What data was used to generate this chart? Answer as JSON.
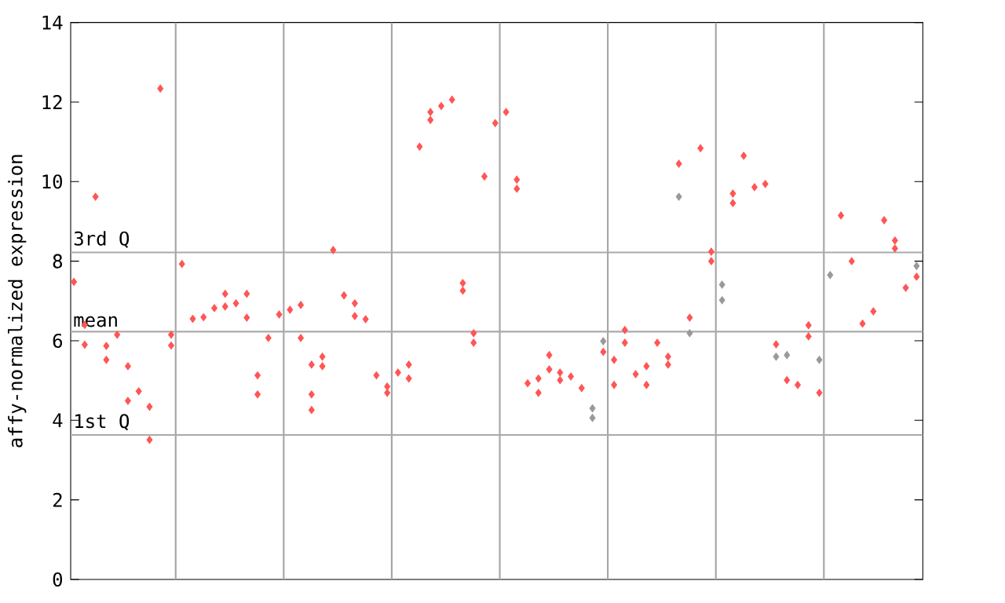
{
  "chart_data": {
    "type": "scatter",
    "ylabel": "affy-normalized expression",
    "categories": [
      null,
      null,
      null,
      null,
      null,
      null,
      null,
      null,
      null,
      null,
      null,
      null,
      null,
      null,
      null,
      null,
      null,
      null,
      null,
      null,
      null,
      null,
      null,
      null,
      null,
      null,
      null,
      null,
      null,
      null,
      null,
      null,
      null,
      null,
      null,
      null,
      null,
      null,
      null,
      null,
      null,
      null,
      null,
      null,
      null,
      null,
      null,
      null,
      null,
      null,
      null,
      null,
      null,
      null,
      null,
      null,
      null,
      null,
      null,
      null,
      null,
      null,
      null,
      null,
      null,
      null,
      null,
      null,
      null,
      null,
      null,
      null,
      null,
      null,
      null,
      null,
      null,
      null,
      null
    ],
    "ylim": [
      0,
      14
    ],
    "yticks": [
      0,
      2,
      4,
      6,
      8,
      10,
      12,
      14
    ],
    "tick_labels": "y",
    "marker": "diamond",
    "ref_lines": [
      {
        "axis": "y",
        "value": 8.22,
        "label": "3rd Q",
        "color": "#aaaaaa"
      },
      {
        "axis": "y",
        "value": 6.23,
        "label": "mean",
        "color": "#aaaaaa"
      },
      {
        "axis": "y",
        "value": 3.63,
        "label": "1st Q",
        "color": "#aaaaaa"
      }
    ],
    "series": [
      {
        "color": "#999999",
        "values": [
          null,
          null,
          null,
          null,
          null,
          null,
          null,
          null,
          null,
          null,
          null,
          null,
          null,
          null,
          null,
          null,
          null,
          null,
          null,
          null,
          null,
          null,
          null,
          null,
          null,
          null,
          null,
          null,
          null,
          null,
          null,
          null,
          null,
          null,
          null,
          null,
          null,
          null,
          null,
          null,
          null,
          null,
          null,
          null,
          null,
          null,
          null,
          null,
          4.3,
          5.99,
          null,
          null,
          null,
          null,
          null,
          null,
          9.62,
          6.19,
          null,
          null,
          7.41,
          null,
          null,
          null,
          null,
          5.6,
          5.64,
          null,
          null,
          5.52,
          7.65,
          null,
          null,
          null,
          null,
          null,
          null,
          null,
          7.88
        ]
      },
      {
        "color": "#999999",
        "values": [
          null,
          null,
          null,
          null,
          null,
          null,
          null,
          null,
          null,
          null,
          null,
          null,
          null,
          null,
          null,
          null,
          null,
          null,
          null,
          null,
          null,
          null,
          null,
          null,
          null,
          null,
          null,
          null,
          null,
          null,
          null,
          null,
          null,
          null,
          null,
          null,
          null,
          null,
          null,
          null,
          null,
          null,
          null,
          null,
          null,
          null,
          null,
          null,
          4.06,
          null,
          null,
          null,
          null,
          null,
          null,
          null,
          null,
          null,
          null,
          null,
          7.02,
          null,
          null,
          null,
          null,
          null,
          null,
          null,
          null,
          null,
          null,
          null,
          null,
          null,
          null,
          null,
          null,
          null,
          null
        ]
      },
      {
        "color": "#ff5555",
        "values": [
          7.48,
          6.4,
          9.62,
          5.87,
          6.15,
          5.36,
          4.73,
          4.34,
          12.34,
          6.15,
          7.93,
          6.55,
          6.59,
          6.82,
          7.18,
          6.94,
          7.18,
          5.13,
          6.07,
          6.66,
          6.78,
          6.9,
          5.4,
          5.6,
          8.28,
          7.14,
          6.94,
          6.54,
          5.13,
          4.85,
          5.2,
          5.4,
          10.88,
          11.75,
          11.9,
          12.06,
          7.45,
          6.19,
          10.13,
          11.47,
          11.75,
          10.05,
          4.93,
          5.05,
          5.64,
          5.01,
          5.1,
          4.81,
          null,
          5.72,
          5.52,
          6.27,
          5.16,
          5.36,
          5.95,
          5.6,
          10.45,
          6.58,
          10.84,
          8.24,
          null,
          9.7,
          10.65,
          9.86,
          9.94,
          5.91,
          5.01,
          4.89,
          6.39,
          4.69,
          null,
          9.15,
          8.0,
          6.43,
          6.74,
          9.03,
          8.52,
          7.33,
          7.61
        ]
      },
      {
        "color": "#ff5555",
        "values": [
          null,
          5.9,
          null,
          5.52,
          null,
          4.49,
          null,
          3.51,
          null,
          5.88,
          null,
          null,
          null,
          null,
          6.86,
          null,
          6.58,
          4.65,
          null,
          null,
          null,
          6.07,
          4.65,
          5.36,
          null,
          null,
          6.62,
          null,
          null,
          4.69,
          null,
          5.05,
          null,
          11.55,
          null,
          null,
          7.26,
          5.95,
          null,
          null,
          null,
          9.82,
          null,
          4.69,
          5.28,
          5.2,
          null,
          null,
          null,
          null,
          4.89,
          5.95,
          null,
          4.89,
          null,
          5.4,
          null,
          null,
          null,
          8.0,
          null,
          9.46,
          null,
          null,
          null,
          null,
          null,
          null,
          6.11,
          null,
          null,
          null,
          null,
          null,
          null,
          null,
          8.32,
          null,
          null
        ]
      },
      {
        "color": "#ff5555",
        "values": [
          null,
          null,
          null,
          null,
          null,
          null,
          null,
          null,
          null,
          null,
          null,
          null,
          null,
          null,
          null,
          null,
          null,
          null,
          null,
          null,
          null,
          null,
          4.26,
          null,
          null,
          null,
          null,
          null,
          null,
          null,
          null,
          null,
          null,
          null,
          null,
          null,
          null,
          null,
          null,
          null,
          null,
          null,
          null,
          null,
          null,
          null,
          null,
          null,
          null,
          null,
          null,
          null,
          null,
          null,
          null,
          null,
          null,
          null,
          null,
          null,
          null,
          null,
          null,
          null,
          null,
          null,
          null,
          null,
          null,
          null,
          null,
          null,
          null,
          null,
          null,
          null,
          null,
          null,
          null
        ]
      }
    ]
  }
}
